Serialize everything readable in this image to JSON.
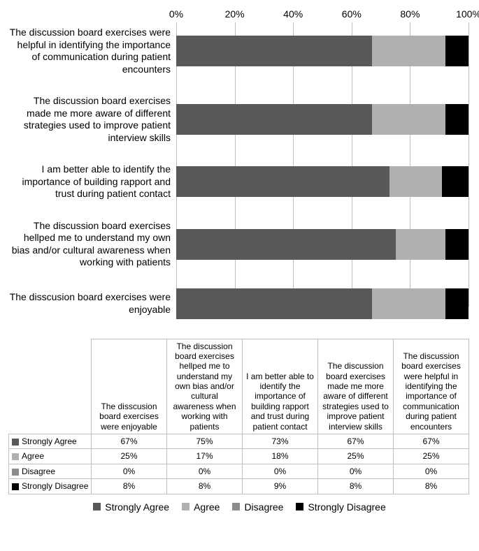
{
  "chart": {
    "type": "stacked-bar-horizontal",
    "x_axis": {
      "ticks": [
        0,
        20,
        40,
        60,
        80,
        100
      ],
      "suffix": "%"
    },
    "series": [
      {
        "key": "strongly_agree",
        "label": "Strongly Agree",
        "color": "#595959"
      },
      {
        "key": "agree",
        "label": "Agree",
        "color": "#b0b0b0"
      },
      {
        "key": "disagree",
        "label": "Disagree",
        "color": "#8c8c8c"
      },
      {
        "key": "strongly_disagree",
        "label": "Strongly Disagree",
        "color": "#000000"
      }
    ],
    "bars": [
      {
        "label": "The discussion board exercises were helpful in identifying the importance of communication during patient encounters",
        "values": {
          "strongly_agree": 67,
          "agree": 25,
          "disagree": 0,
          "strongly_disagree": 8
        }
      },
      {
        "label": "The discussion board exercises made me more aware of different strategies used to improve patient interview skills",
        "values": {
          "strongly_agree": 67,
          "agree": 25,
          "disagree": 0,
          "strongly_disagree": 8
        }
      },
      {
        "label": "I am better able to identify the importance of building rapport and trust during patient contact",
        "values": {
          "strongly_agree": 73,
          "agree": 18,
          "disagree": 0,
          "strongly_disagree": 9
        }
      },
      {
        "label": "The discussion board exercises hellped me to understand my own bias and/or cultural awareness when working with patients",
        "values": {
          "strongly_agree": 75,
          "agree": 17,
          "disagree": 0,
          "strongly_disagree": 8
        }
      },
      {
        "label": "The disscusion board exercises were enjoyable",
        "values": {
          "strongly_agree": 67,
          "agree": 25,
          "disagree": 0,
          "strongly_disagree": 8
        }
      }
    ]
  },
  "table": {
    "columns": [
      "The disscusion board exercises were enjoyable",
      "The discussion board exercises hellped me to understand my own bias and/or cultural awareness when working with patients",
      "I am better able to identify the importance of building rapport and trust during patient contact",
      "The discussion board exercises made me more aware of different strategies used to improve patient interview skills",
      "The discussion board exercises were helpful in identifying the importance of communication during patient encounters"
    ],
    "rows": [
      {
        "label": "Strongly Agree",
        "color": "#595959",
        "cells": [
          "67%",
          "75%",
          "73%",
          "67%",
          "67%"
        ]
      },
      {
        "label": "Agree",
        "color": "#b0b0b0",
        "cells": [
          "25%",
          "17%",
          "18%",
          "25%",
          "25%"
        ]
      },
      {
        "label": "Disagree",
        "color": "#8c8c8c",
        "cells": [
          "0%",
          "0%",
          "0%",
          "0%",
          "0%"
        ]
      },
      {
        "label": "Strongly Disagree",
        "color": "#000000",
        "cells": [
          "8%",
          "8%",
          "9%",
          "8%",
          "8%"
        ]
      }
    ]
  }
}
